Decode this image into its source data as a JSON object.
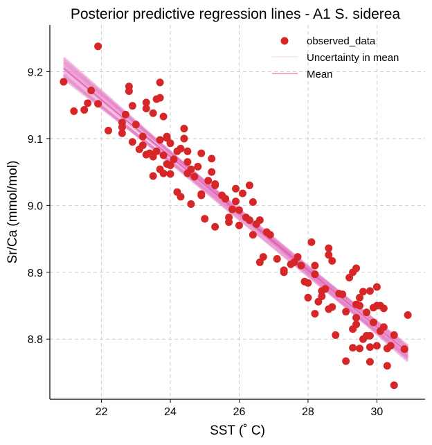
{
  "chart_data": {
    "type": "scatter",
    "title": "Posterior predictive regression lines - A1 S. siderea",
    "xlabel": "SST (˚ C)",
    "ylabel": "Sr/Ca (mmol/mol)",
    "xlim": [
      20.5,
      31.4
    ],
    "ylim": [
      8.71,
      9.27
    ],
    "xticks": [
      22,
      24,
      26,
      28,
      30
    ],
    "yticks": [
      8.8,
      8.9,
      9.0,
      9.1,
      9.2
    ],
    "xtick_labels": [
      "22",
      "24",
      "26",
      "28",
      "30"
    ],
    "ytick_labels": [
      "8.8",
      "8.9",
      "9.0",
      "9.1",
      "9.2"
    ],
    "grid": true,
    "legend_position": "top-right",
    "colors": {
      "observed": "#d62728",
      "uncertainty": "#e377c2",
      "mean": "#e0529f"
    },
    "series": [
      {
        "name": "observed_data",
        "kind": "points",
        "points": [
          [
            20.9,
            9.185
          ],
          [
            21.2,
            9.141
          ],
          [
            21.5,
            9.143
          ],
          [
            21.6,
            9.153
          ],
          [
            21.7,
            9.172
          ],
          [
            21.9,
            9.152
          ],
          [
            21.9,
            9.238
          ],
          [
            22.2,
            9.112
          ],
          [
            22.6,
            9.124
          ],
          [
            22.6,
            9.117
          ],
          [
            22.6,
            9.108
          ],
          [
            22.7,
            9.136
          ],
          [
            22.8,
            9.171
          ],
          [
            22.8,
            9.178
          ],
          [
            22.9,
            9.149
          ],
          [
            22.9,
            9.095
          ],
          [
            23.0,
            9.121
          ],
          [
            23.1,
            9.084
          ],
          [
            23.2,
            9.09
          ],
          [
            23.2,
            9.103
          ],
          [
            23.3,
            9.145
          ],
          [
            23.3,
            9.154
          ],
          [
            23.3,
            9.076
          ],
          [
            23.4,
            9.078
          ],
          [
            23.5,
            9.138
          ],
          [
            23.5,
            9.073
          ],
          [
            23.5,
            9.044
          ],
          [
            23.6,
            9.159
          ],
          [
            23.6,
            9.081
          ],
          [
            23.7,
            9.184
          ],
          [
            23.7,
            9.161
          ],
          [
            23.7,
            9.098
          ],
          [
            23.7,
            9.054
          ],
          [
            23.8,
            9.133
          ],
          [
            23.8,
            9.075
          ],
          [
            23.8,
            9.048
          ],
          [
            23.9,
            9.103
          ],
          [
            23.9,
            9.101
          ],
          [
            23.9,
            9.062
          ],
          [
            24.0,
            9.093
          ],
          [
            24.0,
            9.06
          ],
          [
            24.0,
            9.047
          ],
          [
            24.1,
            9.069
          ],
          [
            24.2,
            9.081
          ],
          [
            24.2,
            9.02
          ],
          [
            24.3,
            9.085
          ],
          [
            24.3,
            9.013
          ],
          [
            24.4,
            9.115
          ],
          [
            24.4,
            9.1
          ],
          [
            24.5,
            9.081
          ],
          [
            24.5,
            9.065
          ],
          [
            24.5,
            9.048
          ],
          [
            24.6,
            9.054
          ],
          [
            24.6,
            9.002
          ],
          [
            24.7,
            9.043
          ],
          [
            24.8,
            9.058
          ],
          [
            24.9,
            9.078
          ],
          [
            24.9,
            9.017
          ],
          [
            24.9,
            9.015
          ],
          [
            25.0,
            8.98
          ],
          [
            25.1,
            9.037
          ],
          [
            25.2,
            9.07
          ],
          [
            25.2,
            9.05
          ],
          [
            25.3,
            9.03
          ],
          [
            25.3,
            9.032
          ],
          [
            25.3,
            8.968
          ],
          [
            25.5,
            9.015
          ],
          [
            25.6,
            9.01
          ],
          [
            25.7,
            8.982
          ],
          [
            25.7,
            8.975
          ],
          [
            25.8,
            8.994
          ],
          [
            25.9,
            9.006
          ],
          [
            25.9,
            9.025
          ],
          [
            26.0,
            8.97
          ],
          [
            26.0,
            8.993
          ],
          [
            26.1,
            9.018
          ],
          [
            26.2,
            8.982
          ],
          [
            26.3,
            8.978
          ],
          [
            26.3,
            9.03
          ],
          [
            26.4,
            9.005
          ],
          [
            26.4,
            8.956
          ],
          [
            26.5,
            8.972
          ],
          [
            26.6,
            8.978
          ],
          [
            26.6,
            8.915
          ],
          [
            26.7,
            8.923
          ],
          [
            26.8,
            8.96
          ],
          [
            26.9,
            8.956
          ],
          [
            27.1,
            8.92
          ],
          [
            27.3,
            8.903
          ],
          [
            27.3,
            8.9
          ],
          [
            27.5,
            8.912
          ],
          [
            27.6,
            8.915
          ],
          [
            27.7,
            8.923
          ],
          [
            27.8,
            8.91
          ],
          [
            27.9,
            8.886
          ],
          [
            28.0,
            8.884
          ],
          [
            28.0,
            8.862
          ],
          [
            28.1,
            8.945
          ],
          [
            28.2,
            8.897
          ],
          [
            28.2,
            8.91
          ],
          [
            28.2,
            8.838
          ],
          [
            28.3,
            8.856
          ],
          [
            28.4,
            8.864
          ],
          [
            28.4,
            8.872
          ],
          [
            28.5,
            8.875
          ],
          [
            28.6,
            8.926
          ],
          [
            28.6,
            8.936
          ],
          [
            28.6,
            8.845
          ],
          [
            28.7,
            8.917
          ],
          [
            28.7,
            8.848
          ],
          [
            28.8,
            8.806
          ],
          [
            28.9,
            8.868
          ],
          [
            29.0,
            8.867
          ],
          [
            29.1,
            8.767
          ],
          [
            29.1,
            8.841
          ],
          [
            29.2,
            8.892
          ],
          [
            29.3,
            8.815
          ],
          [
            29.3,
            8.787
          ],
          [
            29.3,
            8.9
          ],
          [
            29.4,
            8.906
          ],
          [
            29.4,
            8.852
          ],
          [
            29.4,
            8.832
          ],
          [
            29.4,
            8.822
          ],
          [
            29.5,
            8.862
          ],
          [
            29.5,
            8.85
          ],
          [
            29.5,
            8.786
          ],
          [
            29.6,
            8.871
          ],
          [
            29.6,
            8.8
          ],
          [
            29.7,
            8.84
          ],
          [
            29.7,
            8.805
          ],
          [
            29.8,
            8.872
          ],
          [
            29.8,
            8.805
          ],
          [
            29.8,
            8.788
          ],
          [
            29.8,
            8.766
          ],
          [
            29.9,
            8.847
          ],
          [
            29.9,
            8.825
          ],
          [
            30.0,
            8.878
          ],
          [
            30.0,
            8.85
          ],
          [
            30.0,
            8.79
          ],
          [
            30.1,
            8.85
          ],
          [
            30.1,
            8.812
          ],
          [
            30.2,
            8.846
          ],
          [
            30.2,
            8.818
          ],
          [
            30.3,
            8.786
          ],
          [
            30.3,
            8.76
          ],
          [
            30.4,
            8.79
          ],
          [
            30.5,
            8.806
          ],
          [
            30.5,
            8.731
          ],
          [
            30.8,
            8.785
          ],
          [
            30.9,
            8.836
          ]
        ]
      },
      {
        "name": "Uncertainty in mean",
        "kind": "lines",
        "x_range": [
          20.9,
          30.9
        ],
        "lines": [
          [
            9.221,
            8.767
          ],
          [
            9.19,
            8.79
          ],
          [
            9.205,
            8.775
          ],
          [
            9.213,
            8.782
          ],
          [
            9.197,
            8.773
          ],
          [
            9.21,
            8.786
          ],
          [
            9.218,
            8.77
          ],
          [
            9.193,
            8.784
          ],
          [
            9.207,
            8.779
          ],
          [
            9.201,
            8.788
          ],
          [
            9.215,
            8.776
          ],
          [
            9.195,
            8.772
          ]
        ]
      },
      {
        "name": "Mean",
        "kind": "line",
        "x": [
          20.9,
          30.9
        ],
        "y": [
          9.205,
          8.78
        ]
      }
    ]
  }
}
